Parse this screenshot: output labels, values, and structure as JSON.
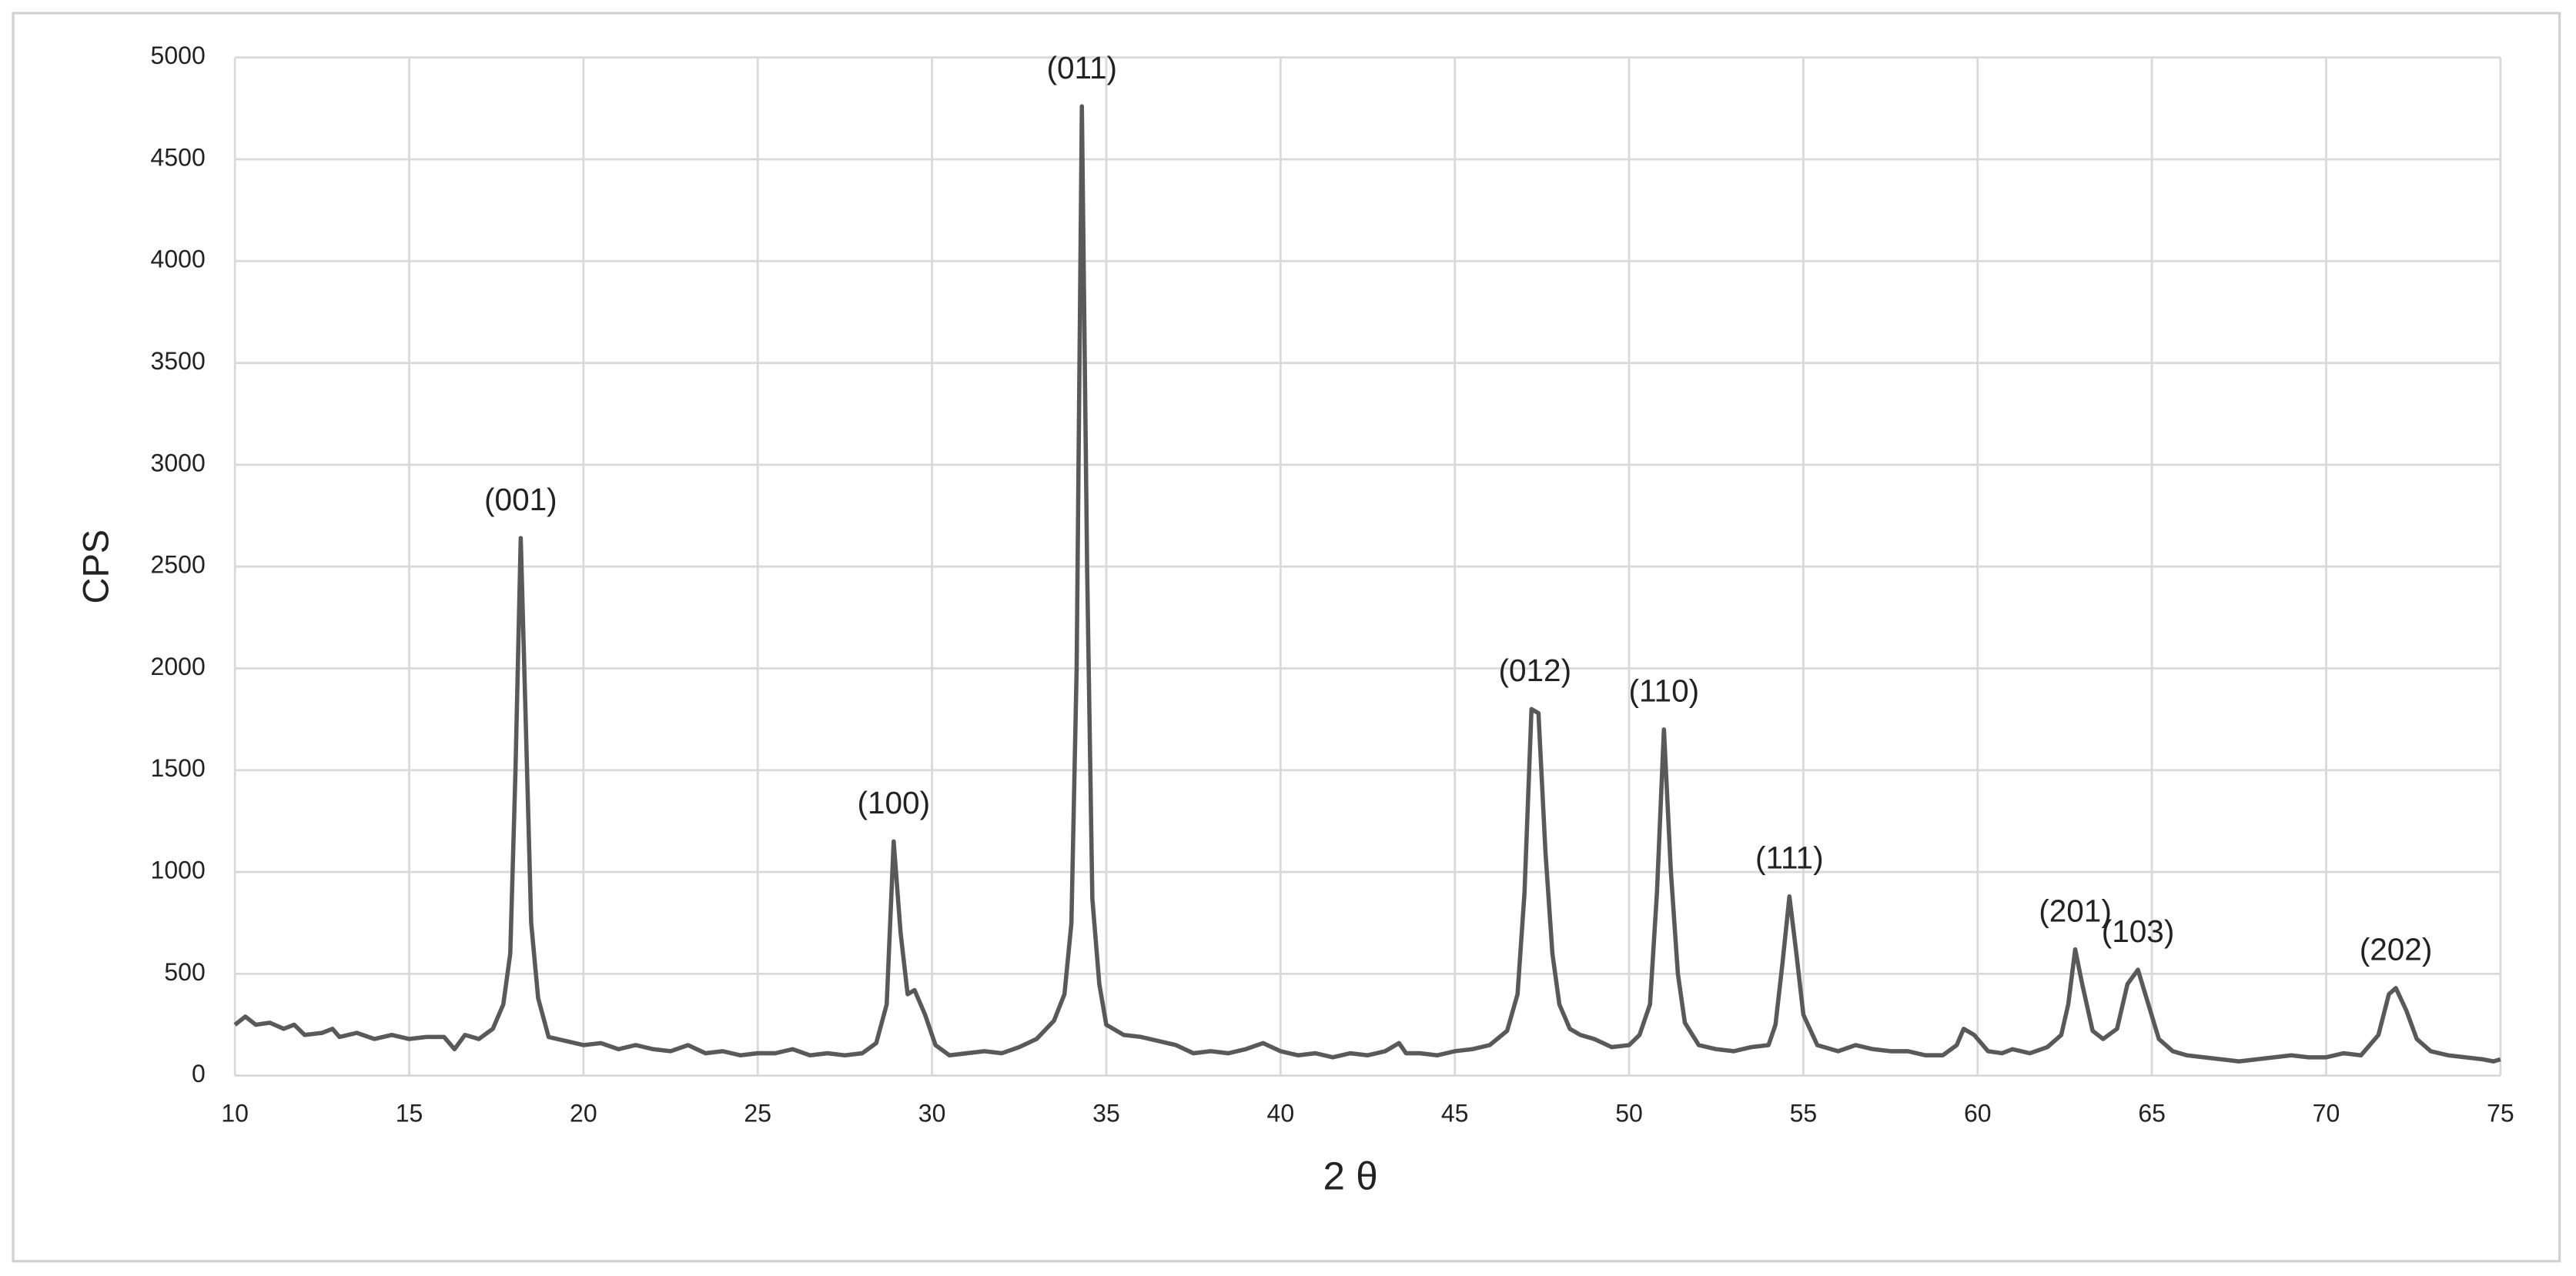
{
  "chart_data": {
    "type": "line",
    "xlabel": "2 θ",
    "ylabel": "CPS",
    "color": "#595959",
    "grid": true,
    "xlim": [
      10,
      75
    ],
    "xticks": [
      10,
      15,
      20,
      25,
      30,
      35,
      40,
      45,
      50,
      55,
      60,
      65,
      70,
      75
    ],
    "ylim": [
      0,
      5000
    ],
    "yticks": [
      0,
      500,
      1000,
      1500,
      2000,
      2500,
      3000,
      3500,
      4000,
      4500,
      5000
    ],
    "x": [
      10,
      10.3,
      10.6,
      11,
      11.4,
      11.7,
      12,
      12.5,
      12.8,
      13,
      13.5,
      14,
      14.5,
      15,
      15.5,
      16,
      16.3,
      16.6,
      17,
      17.4,
      17.7,
      17.9,
      18.05,
      18.2,
      18.35,
      18.5,
      18.7,
      19,
      19.5,
      20,
      20.5,
      21,
      21.5,
      22,
      22.5,
      23,
      23.5,
      24,
      24.5,
      25,
      25.5,
      26,
      26.5,
      27,
      27.5,
      28,
      28.4,
      28.7,
      28.9,
      29.1,
      29.3,
      29.5,
      29.8,
      30.1,
      30.5,
      31,
      31.5,
      32,
      32.5,
      33,
      33.5,
      33.8,
      34,
      34.15,
      34.3,
      34.45,
      34.6,
      34.8,
      35,
      35.5,
      36,
      36.5,
      37,
      37.5,
      38,
      38.5,
      39,
      39.5,
      40,
      40.5,
      41,
      41.5,
      42,
      42.5,
      43,
      43.4,
      43.6,
      44,
      44.5,
      45,
      45.5,
      46,
      46.5,
      46.8,
      47,
      47.2,
      47.4,
      47.6,
      47.8,
      48,
      48.3,
      48.6,
      49,
      49.5,
      50,
      50.3,
      50.6,
      50.8,
      51,
      51.2,
      51.4,
      51.6,
      52,
      52.5,
      53,
      53.5,
      54,
      54.2,
      54.4,
      54.6,
      54.8,
      55,
      55.4,
      56,
      56.5,
      57,
      57.5,
      58,
      58.5,
      59,
      59.4,
      59.6,
      59.9,
      60.3,
      60.7,
      61,
      61.5,
      62,
      62.4,
      62.6,
      62.8,
      63,
      63.3,
      63.6,
      64,
      64.3,
      64.6,
      64.9,
      65.2,
      65.6,
      66,
      66.5,
      67,
      67.5,
      68,
      68.5,
      69,
      69.5,
      70,
      70.5,
      71,
      71.5,
      71.8,
      72,
      72.3,
      72.6,
      73,
      73.5,
      74,
      74.5,
      74.8,
      75
    ],
    "values": [
      250,
      290,
      250,
      260,
      230,
      250,
      200,
      210,
      230,
      190,
      210,
      180,
      200,
      180,
      190,
      190,
      130,
      200,
      180,
      230,
      350,
      600,
      1500,
      2640,
      1700,
      750,
      380,
      190,
      170,
      150,
      160,
      130,
      150,
      130,
      120,
      150,
      110,
      120,
      100,
      110,
      110,
      130,
      100,
      110,
      100,
      110,
      160,
      350,
      1150,
      700,
      400,
      420,
      300,
      150,
      100,
      110,
      120,
      110,
      140,
      180,
      270,
      400,
      750,
      2000,
      4760,
      2500,
      870,
      450,
      250,
      200,
      190,
      170,
      150,
      110,
      120,
      110,
      130,
      160,
      120,
      100,
      110,
      90,
      110,
      100,
      120,
      160,
      110,
      110,
      100,
      120,
      130,
      150,
      220,
      400,
      900,
      1800,
      1780,
      1100,
      600,
      350,
      230,
      200,
      180,
      140,
      150,
      200,
      350,
      900,
      1700,
      1000,
      500,
      260,
      150,
      130,
      120,
      140,
      150,
      250,
      550,
      880,
      600,
      300,
      150,
      120,
      150,
      130,
      120,
      120,
      100,
      100,
      150,
      230,
      200,
      120,
      110,
      130,
      110,
      140,
      200,
      350,
      620,
      450,
      220,
      180,
      230,
      450,
      520,
      350,
      180,
      120,
      100,
      90,
      80,
      70,
      80,
      90,
      100,
      90,
      90,
      110,
      100,
      200,
      400,
      430,
      320,
      180,
      120,
      100,
      90,
      80,
      70,
      80
    ],
    "annotations": [
      {
        "text": "(001)",
        "x": 18.2,
        "y": 2640
      },
      {
        "text": "(100)",
        "x": 28.9,
        "y": 1150
      },
      {
        "text": "(011)",
        "x": 34.3,
        "y": 4760
      },
      {
        "text": "(012)",
        "x": 47.3,
        "y": 1800
      },
      {
        "text": "(110)",
        "x": 51,
        "y": 1700
      },
      {
        "text": "(111)",
        "x": 54.6,
        "y": 880
      },
      {
        "text": "(201)",
        "x": 62.8,
        "y": 620
      },
      {
        "text": "(103)",
        "x": 64.6,
        "y": 520
      },
      {
        "text": "(202)",
        "x": 72,
        "y": 430
      }
    ]
  }
}
